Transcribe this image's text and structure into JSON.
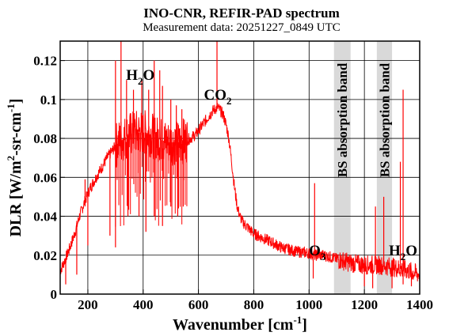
{
  "chart_data": {
    "type": "line",
    "title": "INO-CNR, REFIR-PAD spectrum",
    "subtitle": "Measurement data: 20251227_0849 UTC",
    "xlabel": "Wavenumber [cm-1]",
    "ylabel": "DLR [W/m2-sr-cm-1]",
    "xlabel_parts": {
      "base": "Wavenumber [cm",
      "sup": "-1",
      "end": "]"
    },
    "ylabel_parts": {
      "base": "DLR [W/m",
      "sup1": "2",
      "mid": "-sr-cm",
      "sup2": "-1",
      "end": "]"
    },
    "xlim": [
      100,
      1400
    ],
    "ylim": [
      0,
      0.13
    ],
    "xticks": [
      200,
      400,
      600,
      800,
      1000,
      1200,
      1400
    ],
    "yticks": [
      0,
      0.02,
      0.04,
      0.06,
      0.08,
      0.1,
      0.12
    ],
    "ytick_labels": [
      "0",
      "0.02",
      "0.04",
      "0.06",
      "0.08",
      "0.1",
      "0.12"
    ],
    "grid": true,
    "series": [
      {
        "color": "#ff0000",
        "x": [
          100,
          110,
          130,
          150,
          170,
          190,
          210,
          230,
          250,
          270,
          290,
          310,
          330,
          350,
          370,
          390,
          410,
          430,
          450,
          470,
          490,
          510,
          530,
          550,
          570,
          590,
          610,
          630,
          640,
          650,
          660,
          670,
          680,
          690,
          700,
          710,
          720,
          730,
          740,
          750,
          760,
          780,
          800,
          830,
          860,
          900,
          950,
          1000,
          1020,
          1050,
          1080,
          1100,
          1150,
          1200,
          1250,
          1300,
          1330,
          1360,
          1400
        ],
        "y": [
          0.012,
          0.015,
          0.022,
          0.03,
          0.04,
          0.048,
          0.055,
          0.06,
          0.065,
          0.07,
          0.074,
          0.078,
          0.08,
          0.082,
          0.083,
          0.083,
          0.083,
          0.082,
          0.08,
          0.079,
          0.078,
          0.078,
          0.078,
          0.079,
          0.08,
          0.082,
          0.086,
          0.09,
          0.092,
          0.094,
          0.095,
          0.096,
          0.094,
          0.092,
          0.087,
          0.08,
          0.068,
          0.055,
          0.045,
          0.04,
          0.037,
          0.034,
          0.031,
          0.029,
          0.027,
          0.024,
          0.022,
          0.021,
          0.02,
          0.02,
          0.019,
          0.018,
          0.016,
          0.015,
          0.015,
          0.014,
          0.013,
          0.012,
          0.01
        ],
        "spikes_up": [
          [
            190,
            0.059
          ],
          [
            300,
            0.12
          ],
          [
            320,
            0.13
          ],
          [
            340,
            0.11
          ],
          [
            365,
            0.105
          ],
          [
            395,
            0.11
          ],
          [
            420,
            0.105
          ],
          [
            440,
            0.12
          ],
          [
            460,
            0.115
          ],
          [
            470,
            0.107
          ],
          [
            500,
            0.1
          ],
          [
            520,
            0.097
          ],
          [
            540,
            0.095
          ],
          [
            667,
            0.13
          ],
          [
            1020,
            0.057
          ],
          [
            1240,
            0.045
          ],
          [
            1270,
            0.05
          ],
          [
            1340,
            0.105
          ],
          [
            1330,
            0.068
          ]
        ],
        "spikes_down": [
          [
            120,
            0.005
          ],
          [
            160,
            0.01
          ],
          [
            200,
            0.025
          ],
          [
            280,
            0.03
          ],
          [
            300,
            0.024
          ],
          [
            345,
            0.04
          ],
          [
            385,
            0.04
          ],
          [
            410,
            0.032
          ],
          [
            440,
            0.04
          ],
          [
            470,
            0.035
          ],
          [
            500,
            0.045
          ],
          [
            525,
            0.04
          ],
          [
            545,
            0.045
          ],
          [
            1015,
            0.008
          ],
          [
            1200,
            0.004
          ],
          [
            1230,
            0.003
          ],
          [
            1300,
            0.003
          ],
          [
            1340,
            0.005
          ],
          [
            1370,
            0.004
          ]
        ]
      }
    ],
    "bands": [
      {
        "x0": 1090,
        "x1": 1150,
        "color": "#d9d9d9",
        "label": "BS absorption band"
      },
      {
        "x0": 1245,
        "x1": 1300,
        "color": "#d9d9d9",
        "label": "BS absorption band"
      }
    ],
    "annotations": [
      {
        "label": "H2O",
        "base": "H",
        "sub": "2",
        "end": "O",
        "x": 390,
        "y": 0.11
      },
      {
        "label": "CO2",
        "base": "CO",
        "sub": "2",
        "end": "",
        "x": 670,
        "y": 0.1
      },
      {
        "label": "O3",
        "base": "O",
        "sub": "3",
        "end": "",
        "x": 1030,
        "y": 0.02
      },
      {
        "label": "H2O",
        "base": "H",
        "sub": "2",
        "end": "O",
        "x": 1340,
        "y": 0.02
      }
    ]
  }
}
